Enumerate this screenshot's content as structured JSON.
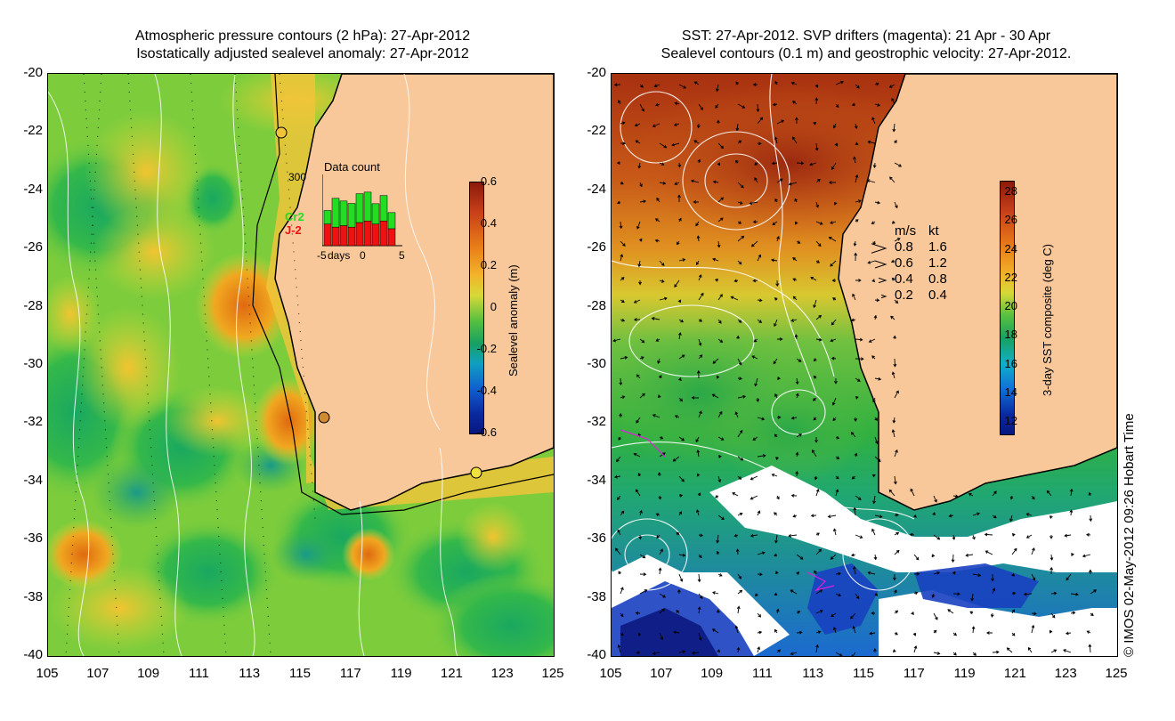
{
  "left_panel": {
    "title_line1": "Atmospheric pressure contours (2 hPa): 27-Apr-2012",
    "title_line2": "Isostatically adjusted sealevel anomaly: 27-Apr-2012",
    "y_ticks": [
      "-20",
      "-22",
      "-24",
      "-26",
      "-28",
      "-30",
      "-32",
      "-34",
      "-36",
      "-38",
      "-40"
    ],
    "x_ticks": [
      "105",
      "107",
      "109",
      "111",
      "113",
      "115",
      "117",
      "119",
      "121",
      "123",
      "125"
    ],
    "colorbar": {
      "title": "Sealevel anomaly (m)",
      "labels": [
        "0.6",
        "0.4",
        "0.2",
        "0",
        "-0.2",
        "-0.4",
        "-0.6"
      ]
    },
    "inset": {
      "title": "Data count",
      "ymax": "300",
      "series_cr2": "Cr2",
      "series_j2": "J-2",
      "x_axis": [
        "-5",
        "days",
        "0",
        "5"
      ],
      "cr2_values": [
        80,
        170,
        145,
        140,
        170,
        170,
        120,
        150,
        95
      ],
      "j2_values": [
        70,
        60,
        65,
        60,
        75,
        80,
        70,
        80,
        55
      ],
      "colors": {
        "cr2": "#22dd22",
        "j2": "#ee1111"
      }
    }
  },
  "right_panel": {
    "title_line1": "SST: 27-Apr-2012. SVP drifters (magenta): 21 Apr - 30 Apr",
    "title_line2": "Sealevel contours (0.1 m) and geostrophic velocity: 27-Apr-2012.",
    "y_ticks": [
      "-20",
      "-22",
      "-24",
      "-26",
      "-28",
      "-30",
      "-32",
      "-34",
      "-36",
      "-38",
      "-40"
    ],
    "x_ticks": [
      "105",
      "107",
      "109",
      "111",
      "113",
      "115",
      "117",
      "119",
      "121",
      "123",
      "125"
    ],
    "colorbar": {
      "title": "3-day SST composite (deg C)",
      "labels": [
        "28",
        "26",
        "24",
        "22",
        "20",
        "18",
        "16",
        "14",
        "12"
      ]
    },
    "velocity_legend": {
      "header_ms": "m/s",
      "header_kt": "kt",
      "rows": [
        {
          "ms": "0.8",
          "kt": "1.6"
        },
        {
          "ms": "0.6",
          "kt": "1.2"
        },
        {
          "ms": "0.4",
          "kt": "0.8"
        },
        {
          "ms": "0.2",
          "kt": "0.4"
        }
      ]
    }
  },
  "credit": "© IMOS 02-May-2012 09:26 Hobart Time",
  "colors": {
    "land": "#f9c89a",
    "coast": "#000000"
  }
}
